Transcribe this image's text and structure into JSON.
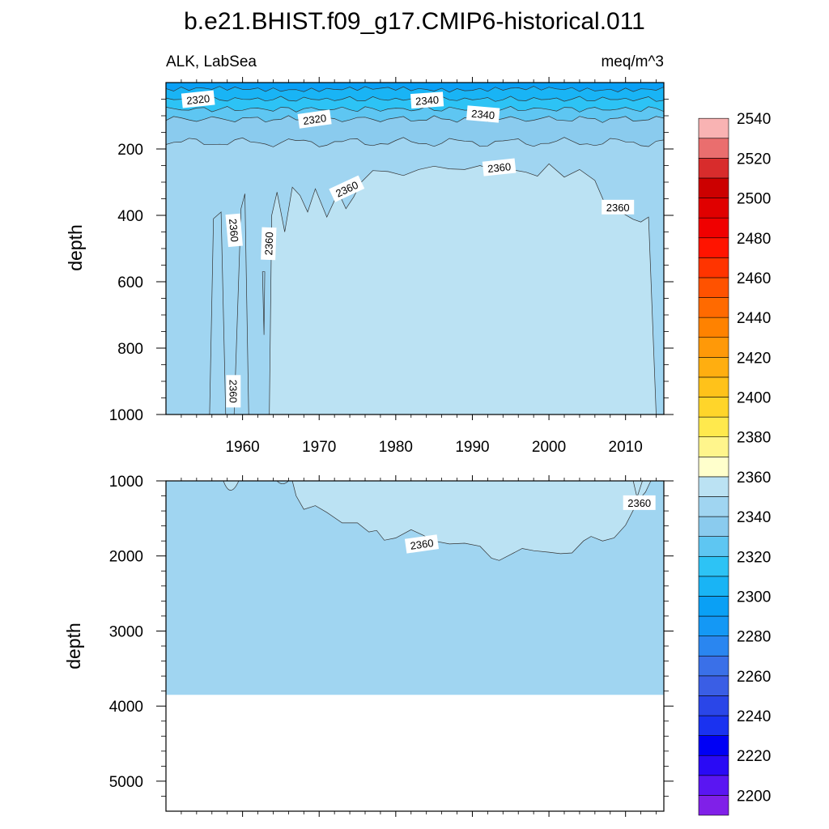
{
  "title": "b.e21.BHIST.f09_g17.CMIP6-historical.011",
  "panel_left_label": "ALK, LabSea",
  "panel_right_label": "meq/m^3",
  "chart_data": [
    {
      "type": "heatmap",
      "subtype": "filled-contour",
      "panel": "upper",
      "xlim": [
        1950,
        2015
      ],
      "ylim": [
        0,
        1000
      ],
      "y_reversed": true,
      "ylabel": "depth",
      "x_ticks": [
        1960,
        1970,
        1980,
        1990,
        2000,
        2010
      ],
      "y_ticks": [
        200,
        400,
        600,
        800,
        1000
      ],
      "contour_labels": [
        "2320",
        "2340",
        "2320",
        "2340",
        "2360",
        "2360",
        "2360",
        "2360",
        "2360",
        "2360"
      ],
      "regions": [
        {
          "range": "2300-2310",
          "color": "#0aa0f5",
          "depth": [
            0,
            20
          ]
        },
        {
          "range": "2310-2320",
          "color": "#19b4f5",
          "depth": [
            20,
            50
          ]
        },
        {
          "range": "2320-2330",
          "color": "#2dc3f5",
          "depth": [
            50,
            80
          ]
        },
        {
          "range": "2330-2340",
          "color": "#5ec6f2",
          "depth": [
            80,
            110
          ]
        },
        {
          "range": "2340-2350",
          "color": "#8acbee",
          "depth": [
            110,
            180
          ]
        },
        {
          "range": "2350-2360",
          "color": "#a0d5f1",
          "depth": [
            180,
            1000
          ]
        },
        {
          "range": "2360-2370",
          "color": "#bbe2f3",
          "depth": [
            265,
            1000
          ],
          "years": [
            1963,
            2014
          ]
        }
      ]
    },
    {
      "type": "heatmap",
      "subtype": "filled-contour",
      "panel": "lower",
      "xlim": [
        1950,
        2015
      ],
      "ylim": [
        1000,
        5400
      ],
      "y_reversed": true,
      "ylabel": "depth",
      "y_ticks": [
        1000,
        2000,
        3000,
        4000,
        5000
      ],
      "bottom_of_data": 3850,
      "contour_labels": [
        "2360",
        "2360"
      ],
      "regions": [
        {
          "range": "2350-2360",
          "color": "#a0d5f1",
          "depth": [
            1000,
            3850
          ]
        },
        {
          "range": "2360-2370",
          "color": "#bbe2f3",
          "depth": [
            1000,
            2050
          ],
          "years": [
            1966,
            2013
          ]
        }
      ]
    },
    {
      "type": "colorbar",
      "range": [
        2190,
        2560
      ],
      "step": 10,
      "labels": [
        "2200",
        "2220",
        "2240",
        "2260",
        "2280",
        "2300",
        "2320",
        "2340",
        "2360",
        "2380",
        "2400",
        "2420",
        "2440",
        "2460",
        "2480",
        "2500",
        "2520",
        "2540"
      ],
      "colors": [
        "#8020e8",
        "#5a16f2",
        "#2a0af5",
        "#0000f5",
        "#1a32f0",
        "#2a46e8",
        "#3a5ee5",
        "#3a70e8",
        "#2a86f0",
        "#1498f5",
        "#0aa0f5",
        "#19b4f5",
        "#2dc3f5",
        "#5ec6f2",
        "#8acbee",
        "#a0d5f1",
        "#bbe2f3",
        "#ffffcc",
        "#fff58c",
        "#ffe94d",
        "#ffd52a",
        "#ffc21a",
        "#ffae10",
        "#ff9908",
        "#ff8200",
        "#ff6a00",
        "#ff5200",
        "#ff3400",
        "#ff1400",
        "#f00000",
        "#e00000",
        "#cc0000",
        "#d82c2c",
        "#ea6e6e",
        "#f9b3b3"
      ]
    }
  ]
}
